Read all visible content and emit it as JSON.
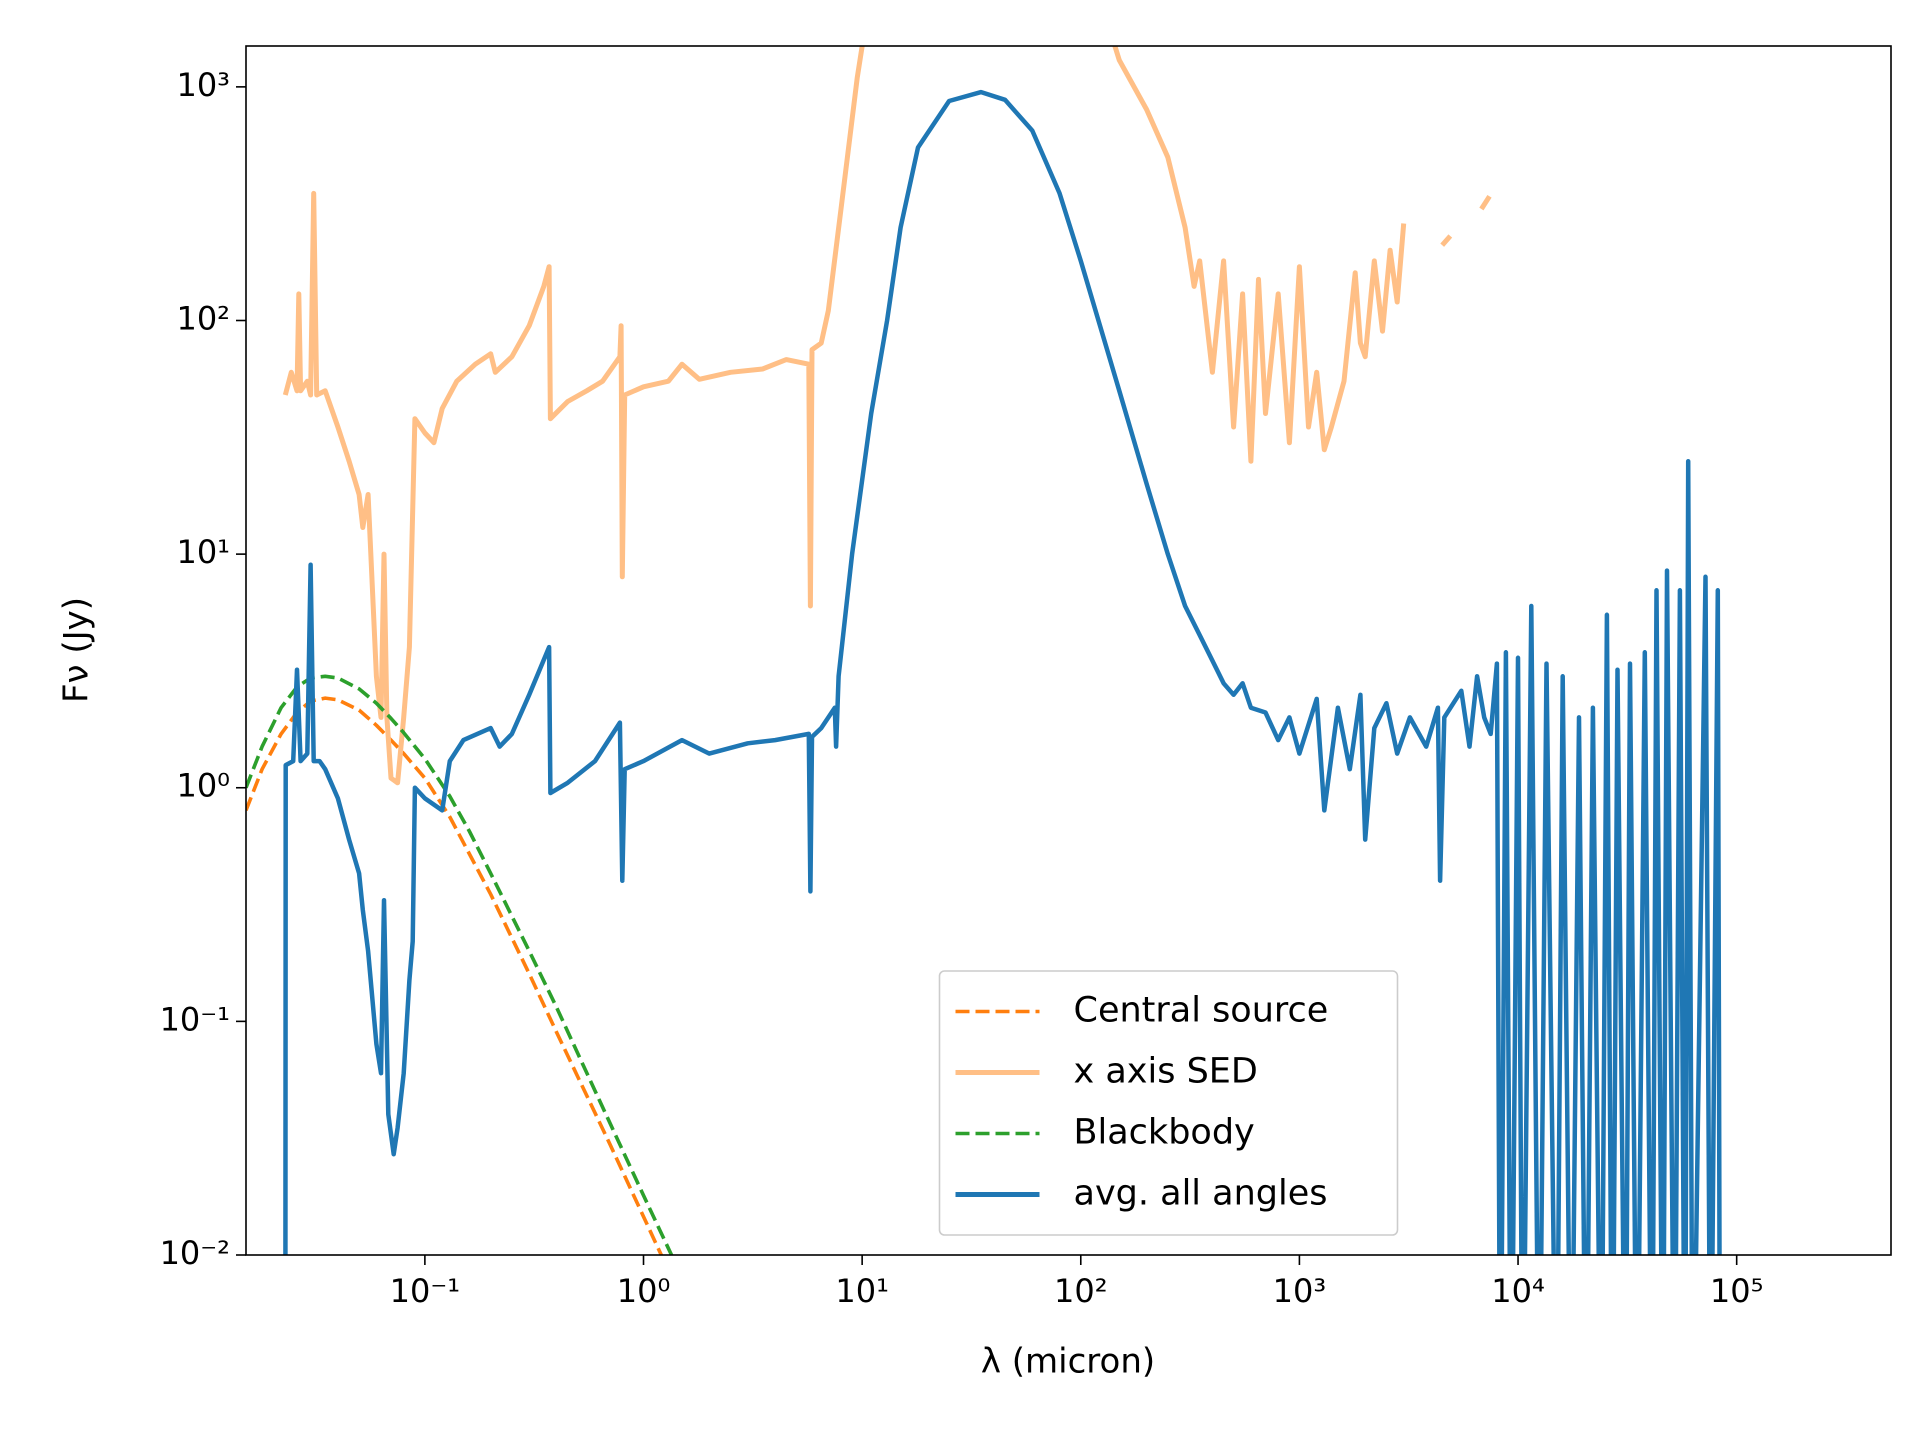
{
  "chart_data": {
    "type": "line",
    "log_x": true,
    "log_y": true,
    "grid": false,
    "legend": "lower center",
    "x_label": "λ (micron)",
    "y_label": "Fν (Jy)",
    "xlim": [
      0.0152,
      508000
    ],
    "ylim": [
      0.01,
      1496
    ],
    "xticks": [
      {
        "value": 0.1,
        "label": "10⁻¹"
      },
      {
        "value": 1,
        "label": "10⁰"
      },
      {
        "value": 10,
        "label": "10¹"
      },
      {
        "value": 100,
        "label": "10²"
      },
      {
        "value": 1000,
        "label": "10³"
      },
      {
        "value": 10000,
        "label": "10⁴"
      },
      {
        "value": 100000,
        "label": "10⁵"
      }
    ],
    "yticks": [
      {
        "value": 0.01,
        "label": "10⁻²"
      },
      {
        "value": 0.1,
        "label": "10⁻¹"
      },
      {
        "value": 1,
        "label": "10⁰"
      },
      {
        "value": 10,
        "label": "10¹"
      },
      {
        "value": 100,
        "label": "10²"
      },
      {
        "value": 1000,
        "label": "10³"
      }
    ],
    "series": [
      {
        "name": "Central source",
        "color": "#ff7f0e",
        "dashed": true,
        "x": [
          0.0152,
          0.018,
          0.022,
          0.026,
          0.03,
          0.035,
          0.04,
          0.05,
          0.06,
          0.07,
          0.08,
          0.1,
          0.13,
          0.16,
          0.2,
          0.3,
          0.4,
          0.5,
          0.7,
          1.0,
          1.25
        ],
        "values": [
          0.8,
          1.2,
          1.7,
          2.1,
          2.35,
          2.42,
          2.38,
          2.15,
          1.85,
          1.6,
          1.4,
          1.1,
          0.75,
          0.52,
          0.35,
          0.16,
          0.09,
          0.058,
          0.03,
          0.0146,
          0.0093
        ]
      },
      {
        "name": "x axis SED",
        "color": "#ffbf86",
        "dashed": false,
        "x": [
          0.023,
          0.0245,
          0.026,
          0.0265,
          0.027,
          0.029,
          0.03,
          0.031,
          0.032,
          0.035,
          0.04,
          0.045,
          0.05,
          0.052,
          0.055,
          0.058,
          0.06,
          0.063,
          0.065,
          0.067,
          0.07,
          0.075,
          0.08,
          0.085,
          0.09,
          0.1,
          0.11,
          0.12,
          0.14,
          0.17,
          0.2,
          0.21,
          0.25,
          0.3,
          0.35,
          0.37,
          0.375,
          0.45,
          0.55,
          0.65,
          0.78,
          0.79,
          0.8,
          0.82,
          1.0,
          1.3,
          1.5,
          1.8,
          2.5,
          3.5,
          4.5,
          5.7,
          5.8,
          5.9,
          6.5,
          7.0,
          8.0,
          9.5,
          10.5,
          130,
          150,
          200,
          250,
          300,
          330,
          350,
          400,
          450,
          500,
          550,
          600,
          650,
          700,
          800,
          900,
          1000,
          1100,
          1200,
          1300,
          1400,
          1600,
          1800,
          1900,
          2000,
          2200,
          2400,
          2600,
          2800,
          3000,
          3500,
          4500,
          4900,
          5500,
          6800,
          7400,
          8200
        ],
        "values": [
          48,
          60,
          50,
          130,
          50,
          55,
          48,
          350,
          48,
          50,
          35,
          25,
          18,
          13,
          18,
          6,
          3,
          2,
          10,
          2,
          1.1,
          1.05,
          2,
          4,
          38,
          33,
          30,
          42,
          55,
          65,
          72,
          60,
          70,
          95,
          140,
          170,
          38,
          45,
          50,
          55,
          70,
          95,
          8,
          48,
          52,
          55,
          65,
          56,
          60,
          62,
          68,
          65,
          6,
          75,
          80,
          110,
          300,
          1100,
          2000,
          2000,
          1300,
          800,
          500,
          250,
          140,
          180,
          60,
          180,
          35,
          130,
          25,
          150,
          40,
          130,
          30,
          170,
          35,
          60,
          28,
          35,
          55,
          160,
          80,
          70,
          180,
          90,
          200,
          120,
          260,
          null,
          210,
          230,
          null,
          300,
          340,
          null
        ]
      },
      {
        "name": "Blackbody",
        "color": "#2ca02c",
        "dashed": true,
        "x": [
          0.0152,
          0.018,
          0.022,
          0.026,
          0.03,
          0.035,
          0.04,
          0.05,
          0.06,
          0.07,
          0.08,
          0.1,
          0.13,
          0.16,
          0.2,
          0.3,
          0.4,
          0.5,
          0.7,
          1.0,
          1.4
        ],
        "values": [
          1.0,
          1.5,
          2.2,
          2.7,
          2.95,
          3.0,
          2.95,
          2.65,
          2.3,
          1.98,
          1.72,
          1.33,
          0.92,
          0.65,
          0.43,
          0.2,
          0.115,
          0.073,
          0.037,
          0.018,
          0.0092
        ]
      },
      {
        "name": "avg. all angles",
        "color": "#1f77b4",
        "dashed": false,
        "x": [
          0.023,
          0.0231,
          0.025,
          0.026,
          0.027,
          0.029,
          0.03,
          0.031,
          0.033,
          0.035,
          0.04,
          0.045,
          0.05,
          0.052,
          0.055,
          0.06,
          0.063,
          0.065,
          0.068,
          0.072,
          0.075,
          0.08,
          0.085,
          0.088,
          0.09,
          0.1,
          0.12,
          0.13,
          0.15,
          0.2,
          0.22,
          0.25,
          0.3,
          0.37,
          0.375,
          0.45,
          0.6,
          0.78,
          0.8,
          0.82,
          1.0,
          1.5,
          2,
          3,
          4,
          5.7,
          5.8,
          5.9,
          6.5,
          7.5,
          7.6,
          7.8,
          9,
          11,
          13,
          15,
          18,
          25,
          35,
          45,
          60,
          80,
          100,
          150,
          200,
          250,
          300,
          350,
          400,
          450,
          500,
          550,
          600,
          700,
          800,
          900,
          1000,
          1200,
          1300,
          1500,
          1700,
          1900,
          2000,
          2200,
          2500,
          2800,
          3200,
          3800,
          4300,
          4400,
          4600,
          5500,
          6000,
          6500,
          7000,
          7500,
          8000,
          8300,
          8800,
          9300,
          10000,
          10500,
          11500,
          12500,
          13500,
          15000,
          16000,
          17500,
          19000,
          20500,
          22000,
          24000,
          25500,
          27000,
          28500,
          31000,
          32500,
          35000,
          38000,
          41000,
          43000,
          46000,
          48000,
          52000,
          55000,
          58000,
          60000,
          63000,
          72000,
          76000,
          82000,
          84000
        ],
        "values": [
          0.001,
          1.25,
          1.3,
          3.2,
          1.3,
          1.4,
          9,
          1.3,
          1.3,
          1.2,
          0.9,
          0.6,
          0.43,
          0.3,
          0.2,
          0.08,
          0.06,
          0.33,
          0.04,
          0.027,
          0.035,
          0.06,
          0.15,
          0.22,
          1.0,
          0.9,
          0.8,
          1.3,
          1.6,
          1.8,
          1.5,
          1.7,
          2.5,
          4,
          0.95,
          1.05,
          1.3,
          1.9,
          0.4,
          1.2,
          1.3,
          1.6,
          1.4,
          1.55,
          1.6,
          1.7,
          0.36,
          1.65,
          1.8,
          2.2,
          1.5,
          3,
          10,
          40,
          100,
          250,
          550,
          870,
          950,
          880,
          650,
          350,
          180,
          50,
          20,
          10,
          6,
          4.5,
          3.5,
          2.8,
          2.5,
          2.8,
          2.2,
          2.1,
          1.6,
          2.0,
          1.4,
          2.4,
          0.8,
          2.2,
          1.2,
          2.5,
          0.6,
          1.8,
          2.3,
          1.4,
          2.0,
          1.5,
          2.2,
          0.4,
          2.0,
          2.6,
          1.5,
          3,
          2.0,
          1.7,
          3.4,
          0.001,
          3.8,
          0.001,
          3.6,
          0.001,
          6,
          0.001,
          3.4,
          0.001,
          3,
          0.001,
          2,
          0.001,
          2.2,
          0.001,
          5.5,
          0.001,
          3.2,
          0.001,
          3.4,
          0.001,
          3.8,
          0.001,
          7,
          0.001,
          8.5,
          0.001,
          7,
          0.001,
          25,
          0.001,
          8,
          0.001,
          7,
          0.001
        ]
      }
    ]
  }
}
